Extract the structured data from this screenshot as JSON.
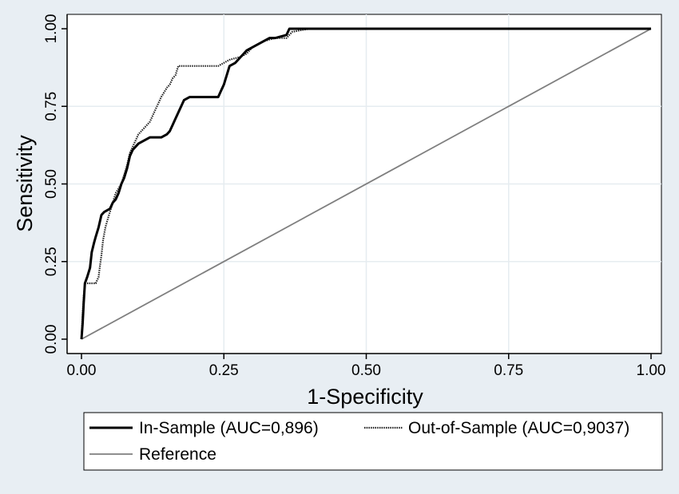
{
  "chart_data": {
    "type": "line",
    "title": "",
    "xlabel": "1-Specificity",
    "ylabel": "Sensitivity",
    "xlim": [
      0,
      1
    ],
    "ylim": [
      0,
      1
    ],
    "x_ticks": [
      "0.00",
      "0.25",
      "0.50",
      "0.75",
      "1.00"
    ],
    "y_ticks": [
      "0.00",
      "0.25",
      "0.50",
      "0.75",
      "1.00"
    ],
    "grid": true,
    "legend_position": "bottom",
    "colors": {
      "background": "#e8eef3",
      "plot_background": "#ffffff",
      "grid": "#e6ecf0",
      "in_sample": "#000000",
      "out_of_sample": "#222222",
      "reference": "#7f7f7f"
    },
    "series": [
      {
        "name": "In-Sample (AUC=0,896)",
        "style": "solid-thick",
        "x": [
          0,
          0.002,
          0.004,
          0.006,
          0.01,
          0.015,
          0.018,
          0.022,
          0.025,
          0.03,
          0.035,
          0.04,
          0.05,
          0.055,
          0.06,
          0.065,
          0.07,
          0.075,
          0.08,
          0.085,
          0.09,
          0.095,
          0.1,
          0.11,
          0.12,
          0.13,
          0.14,
          0.15,
          0.155,
          0.16,
          0.165,
          0.17,
          0.175,
          0.18,
          0.19,
          0.2,
          0.22,
          0.24,
          0.245,
          0.25,
          0.255,
          0.26,
          0.27,
          0.275,
          0.28,
          0.285,
          0.29,
          0.3,
          0.31,
          0.32,
          0.33,
          0.34,
          0.36,
          0.365,
          0.37,
          0.4,
          0.5,
          0.6,
          0.7,
          0.8,
          0.9,
          1.0
        ],
        "y": [
          0,
          0.05,
          0.12,
          0.18,
          0.2,
          0.23,
          0.28,
          0.31,
          0.33,
          0.36,
          0.4,
          0.41,
          0.42,
          0.44,
          0.45,
          0.47,
          0.5,
          0.52,
          0.55,
          0.59,
          0.61,
          0.62,
          0.63,
          0.64,
          0.65,
          0.65,
          0.65,
          0.66,
          0.67,
          0.69,
          0.71,
          0.73,
          0.75,
          0.77,
          0.78,
          0.78,
          0.78,
          0.78,
          0.8,
          0.82,
          0.85,
          0.88,
          0.89,
          0.9,
          0.91,
          0.92,
          0.93,
          0.94,
          0.95,
          0.96,
          0.97,
          0.97,
          0.98,
          1.0,
          1.0,
          1.0,
          1.0,
          1.0,
          1.0,
          1.0,
          1.0,
          1.0
        ]
      },
      {
        "name": "Out-of-Sample (AUC=0,9037)",
        "style": "dotted",
        "x": [
          0,
          0.002,
          0.004,
          0.006,
          0.01,
          0.015,
          0.02,
          0.025,
          0.03,
          0.032,
          0.035,
          0.038,
          0.042,
          0.045,
          0.05,
          0.055,
          0.06,
          0.07,
          0.08,
          0.085,
          0.09,
          0.095,
          0.1,
          0.11,
          0.12,
          0.125,
          0.13,
          0.135,
          0.14,
          0.15,
          0.155,
          0.16,
          0.165,
          0.17,
          0.18,
          0.2,
          0.22,
          0.24,
          0.25,
          0.26,
          0.28,
          0.29,
          0.3,
          0.32,
          0.34,
          0.36,
          0.37,
          0.4,
          0.5,
          0.6,
          0.7,
          0.8,
          0.9,
          1.0
        ],
        "y": [
          0,
          0.08,
          0.14,
          0.18,
          0.18,
          0.18,
          0.18,
          0.18,
          0.2,
          0.23,
          0.27,
          0.32,
          0.36,
          0.38,
          0.41,
          0.44,
          0.47,
          0.5,
          0.56,
          0.6,
          0.62,
          0.64,
          0.66,
          0.68,
          0.7,
          0.72,
          0.74,
          0.76,
          0.78,
          0.81,
          0.82,
          0.84,
          0.85,
          0.88,
          0.88,
          0.88,
          0.88,
          0.88,
          0.89,
          0.9,
          0.91,
          0.92,
          0.94,
          0.96,
          0.97,
          0.97,
          0.99,
          1.0,
          1.0,
          1.0,
          1.0,
          1.0,
          1.0,
          1.0
        ]
      },
      {
        "name": "Reference",
        "style": "solid-gray",
        "x": [
          0,
          1
        ],
        "y": [
          0,
          1
        ]
      }
    ]
  }
}
